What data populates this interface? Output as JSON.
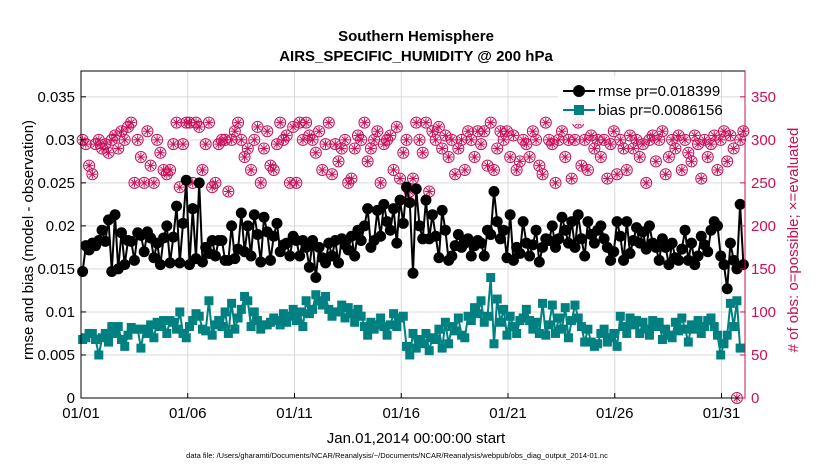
{
  "chart_data": {
    "type": "line",
    "title": [
      "Southern Hemisphere",
      "AIRS_SPECIFIC_HUMIDITY @ 200 hPa"
    ],
    "xlabel": "Jan.01,2014 00:00:00 start",
    "ylabel": "rmse and bias (model - observation)",
    "ylabel_right": "# of obs: o=possible; ×=evaluated",
    "footnote": "data file: /Users/gharamti/Documents/NCAR/Reanalysis/~/Documents/NCAR/Reanalysis/webpub/obs_diag_output_2014-01.nc",
    "x_tick_labels": [
      "01/01",
      "01/06",
      "01/11",
      "01/16",
      "01/21",
      "01/26",
      "01/31"
    ],
    "x_tick_days": [
      0,
      5,
      10,
      15,
      20,
      25,
      30
    ],
    "xlim_days": [
      0,
      31.1
    ],
    "y_ticks": [
      "0",
      "0.005",
      "0.01",
      "0.015",
      "0.02",
      "0.025",
      "0.03",
      "0.035"
    ],
    "ylim": [
      0,
      0.038
    ],
    "y_right_ticks": [
      "0",
      "50",
      "100",
      "150",
      "200",
      "250",
      "300",
      "350"
    ],
    "ylim_right": [
      0,
      380
    ],
    "legend_position": "top-right",
    "grid": true,
    "colors": {
      "rmse": "#000000",
      "bias": "#008080",
      "obs": "#c8105a"
    },
    "series": [
      {
        "name": "rmse pr=0.018399",
        "values": [
          0.0147,
          0.0177,
          0.0172,
          0.018,
          0.0177,
          0.0183,
          0.0195,
          0.0182,
          0.0207,
          0.0147,
          0.0213,
          0.015,
          0.0192,
          0.0155,
          0.0183,
          0.0182,
          0.016,
          0.0192,
          0.0189,
          0.017,
          0.0193,
          0.0186,
          0.0163,
          0.018,
          0.0155,
          0.0186,
          0.02,
          0.0157,
          0.0187,
          0.0223,
          0.0157,
          0.0203,
          0.0253,
          0.0155,
          0.022,
          0.0162,
          0.025,
          0.0158,
          0.0175,
          0.0168,
          0.0183,
          0.0165,
          0.0183,
          0.0183,
          0.016,
          0.016,
          0.02,
          0.0162,
          0.0173,
          0.0215,
          0.017,
          0.02,
          0.0165,
          0.0213,
          0.019,
          0.0158,
          0.021,
          0.0193,
          0.016,
          0.0188,
          0.0203,
          0.017,
          0.0178,
          0.018,
          0.0165,
          0.0188,
          0.0183,
          0.0165,
          0.0183,
          0.0175,
          0.0152,
          0.0183,
          0.014,
          0.0175,
          0.0163,
          0.0157,
          0.018,
          0.0165,
          0.0183,
          0.0157,
          0.0185,
          0.0178,
          0.0172,
          0.0188,
          0.0165,
          0.0195,
          0.0183,
          0.02,
          0.022,
          0.0175,
          0.0183,
          0.0218,
          0.0188,
          0.0225,
          0.0205,
          0.0195,
          0.022,
          0.018,
          0.023,
          0.0203,
          0.0245,
          0.0227,
          0.0145,
          0.0243,
          0.02,
          0.0185,
          0.023,
          0.0185,
          0.0213,
          0.0188,
          0.0163,
          0.0218,
          0.0195,
          0.016,
          0.0165,
          0.0177,
          0.019,
          0.0175,
          0.018,
          0.0185,
          0.0165,
          0.0177,
          0.0183,
          0.018,
          0.0165,
          0.0195,
          0.019,
          0.024,
          0.0205,
          0.0185,
          0.0195,
          0.0163,
          0.0213,
          0.016,
          0.0175,
          0.0168,
          0.0205,
          0.018,
          0.0165,
          0.0178,
          0.0195,
          0.0158,
          0.0175,
          0.0185,
          0.0183,
          0.02,
          0.0175,
          0.0185,
          0.021,
          0.0195,
          0.018,
          0.0205,
          0.0175,
          0.0213,
          0.0185,
          0.0165,
          0.0205,
          0.019,
          0.018,
          0.0195,
          0.02,
          0.0185,
          0.0175,
          0.016,
          0.017,
          0.0205,
          0.0188,
          0.016,
          0.0205,
          0.0168,
          0.0183,
          0.0198,
          0.018,
          0.0193,
          0.0173,
          0.02,
          0.018,
          0.0175,
          0.016,
          0.0185,
          0.0175,
          0.0155,
          0.018,
          0.0163,
          0.016,
          0.0173,
          0.0195,
          0.016,
          0.018,
          0.0155,
          0.0165,
          0.0188,
          0.0178,
          0.017,
          0.0195,
          0.0205,
          0.02,
          0.0165,
          0.0155,
          0.0127,
          0.018,
          0.016,
          0.015,
          0.0225,
          0.0155
        ],
        "color": "#000000",
        "marker": "circle"
      },
      {
        "name": "bias pr=0.0086156",
        "values": [
          0.0068,
          0.007,
          0.0075,
          0.0075,
          0.0068,
          0.005,
          0.007,
          0.0075,
          0.0065,
          0.0083,
          0.0075,
          0.0083,
          0.0068,
          0.006,
          0.0073,
          0.0082,
          0.008,
          0.008,
          0.0058,
          0.008,
          0.0075,
          0.0085,
          0.007,
          0.0088,
          0.0083,
          0.009,
          0.0075,
          0.009,
          0.0088,
          0.008,
          0.01,
          0.0075,
          0.007,
          0.0083,
          0.009,
          0.0098,
          0.0095,
          0.008,
          0.0078,
          0.0113,
          0.0073,
          0.0085,
          0.009,
          0.0083,
          0.01,
          0.0075,
          0.011,
          0.008,
          0.0093,
          0.0103,
          0.0118,
          0.0113,
          0.0083,
          0.01,
          0.009,
          0.008,
          0.0085,
          0.0085,
          0.0088,
          0.0093,
          0.009,
          0.0085,
          0.0098,
          0.0088,
          0.0095,
          0.0103,
          0.009,
          0.01,
          0.0083,
          0.0113,
          0.0098,
          0.0103,
          0.012,
          0.0113,
          0.0108,
          0.0118,
          0.0103,
          0.0095,
          0.01,
          0.01,
          0.0108,
          0.0093,
          0.0105,
          0.0098,
          0.0088,
          0.0103,
          0.0095,
          0.0083,
          0.0073,
          0.0088,
          0.008,
          0.0085,
          0.0093,
          0.0083,
          0.0073,
          0.0085,
          0.0098,
          0.0083,
          0.0093,
          0.0095,
          0.006,
          0.005,
          0.0075,
          0.0058,
          0.0068,
          0.0063,
          0.0075,
          0.0055,
          0.007,
          0.0068,
          0.008,
          0.0058,
          0.0088,
          0.0063,
          0.0083,
          0.0078,
          0.0093,
          0.0073,
          0.007,
          0.0095,
          0.009,
          0.0105,
          0.0098,
          0.0113,
          0.0088,
          0.0095,
          0.014,
          0.0063,
          0.0115,
          0.0088,
          0.0103,
          0.0073,
          0.0095,
          0.0083,
          0.0075,
          0.009,
          0.0093,
          0.0103,
          0.009,
          0.008,
          0.0088,
          0.0075,
          0.011,
          0.0073,
          0.0085,
          0.0108,
          0.0075,
          0.0093,
          0.008,
          0.0105,
          0.007,
          0.009,
          0.0108,
          0.0093,
          0.0083,
          0.0065,
          0.008,
          0.0065,
          0.006,
          0.0063,
          0.0075,
          0.008,
          0.0065,
          0.007,
          0.0075,
          0.006,
          0.0095,
          0.0083,
          0.0075,
          0.0093,
          0.0085,
          0.009,
          0.0075,
          0.0088,
          0.008,
          0.0073,
          0.009,
          0.0083,
          0.0088,
          0.0068,
          0.008,
          0.0073,
          0.007,
          0.0088,
          0.0078,
          0.0093,
          0.008,
          0.0065,
          0.0085,
          0.008,
          0.009,
          0.0075,
          0.0083,
          0.009,
          0.0093,
          0.0083,
          0.0073,
          0.005,
          0.0063,
          0.0073,
          0.011,
          0.0083,
          0.0113,
          0.0058
        ],
        "color": "#008080",
        "marker": "square"
      },
      {
        "name": "obs possible",
        "values": [
          300,
          295,
          270,
          260,
          295,
          300,
          290,
          295,
          285,
          300,
          305,
          290,
          310,
          300,
          315,
          320,
          250,
          300,
          280,
          250,
          310,
          270,
          250,
          300,
          285,
          265,
          260,
          265,
          295,
          320,
          245,
          295,
          320,
          320,
          250,
          320,
          315,
          265,
          295,
          320,
          245,
          250,
          295,
          300,
          300,
          240,
          300,
          310,
          320,
          300,
          280,
          290,
          265,
          300,
          315,
          250,
          290,
          310,
          270,
          265,
          295,
          320,
          300,
          305,
          250,
          315,
          250,
          320,
          300,
          320,
          305,
          300,
          285,
          310,
          265,
          295,
          320,
          260,
          295,
          275,
          290,
          300,
          250,
          255,
          290,
          305,
          300,
          320,
          275,
          290,
          300,
          310,
          250,
          295,
          300,
          305,
          265,
          315,
          255,
          285,
          300,
          240,
          255,
          320,
          300,
          285,
          320,
          240,
          310,
          300,
          315,
          290,
          305,
          280,
          300,
          260,
          290,
          300,
          265,
          310,
          300,
          280,
          310,
          295,
          310,
          270,
          320,
          265,
          290,
          310,
          300,
          310,
          280,
          305,
          265,
          275,
          300,
          295,
          280,
          310,
          300,
          270,
          260,
          320,
          300,
          295,
          250,
          300,
          310,
          280,
          300,
          255,
          300,
          320,
          270,
          300,
          265,
          305,
          290,
          300,
          280,
          300,
          255,
          295,
          310,
          260,
          300,
          290,
          265,
          305,
          290,
          300,
          280,
          295,
          250,
          300,
          305,
          275,
          300,
          310,
          260,
          280,
          300,
          290,
          305,
          265,
          300,
          285,
          275,
          305,
          295,
          255,
          300,
          280,
          295,
          305,
          265,
          300,
          310,
          275,
          305,
          290,
          0,
          300,
          310
        ],
        "color": "#c8105a",
        "marker": "circle-open"
      },
      {
        "name": "obs evaluated",
        "values": [
          300,
          295,
          270,
          260,
          295,
          300,
          290,
          295,
          285,
          300,
          305,
          290,
          310,
          300,
          315,
          320,
          250,
          300,
          280,
          250,
          310,
          270,
          250,
          300,
          285,
          265,
          260,
          265,
          295,
          320,
          245,
          295,
          320,
          320,
          250,
          320,
          315,
          265,
          295,
          320,
          245,
          250,
          295,
          300,
          300,
          240,
          300,
          310,
          320,
          300,
          280,
          290,
          265,
          300,
          315,
          250,
          290,
          310,
          270,
          265,
          295,
          320,
          300,
          305,
          250,
          315,
          250,
          320,
          300,
          320,
          305,
          300,
          285,
          310,
          265,
          295,
          320,
          260,
          295,
          275,
          290,
          300,
          250,
          255,
          290,
          305,
          300,
          320,
          275,
          290,
          300,
          310,
          250,
          295,
          300,
          305,
          265,
          315,
          255,
          285,
          300,
          240,
          255,
          320,
          300,
          285,
          320,
          240,
          310,
          300,
          315,
          290,
          305,
          280,
          300,
          260,
          290,
          300,
          265,
          310,
          300,
          280,
          310,
          295,
          310,
          270,
          320,
          265,
          290,
          310,
          300,
          310,
          280,
          305,
          265,
          275,
          300,
          295,
          280,
          310,
          300,
          270,
          260,
          320,
          300,
          295,
          250,
          300,
          310,
          280,
          300,
          255,
          300,
          320,
          270,
          300,
          265,
          305,
          290,
          300,
          280,
          300,
          255,
          295,
          310,
          260,
          300,
          290,
          265,
          305,
          290,
          300,
          280,
          295,
          250,
          300,
          305,
          275,
          300,
          310,
          260,
          280,
          300,
          290,
          305,
          265,
          300,
          285,
          275,
          305,
          295,
          255,
          300,
          280,
          295,
          305,
          265,
          300,
          310,
          275,
          305,
          290,
          0,
          300,
          310
        ],
        "color": "#c8105a",
        "marker": "asterisk"
      }
    ]
  }
}
